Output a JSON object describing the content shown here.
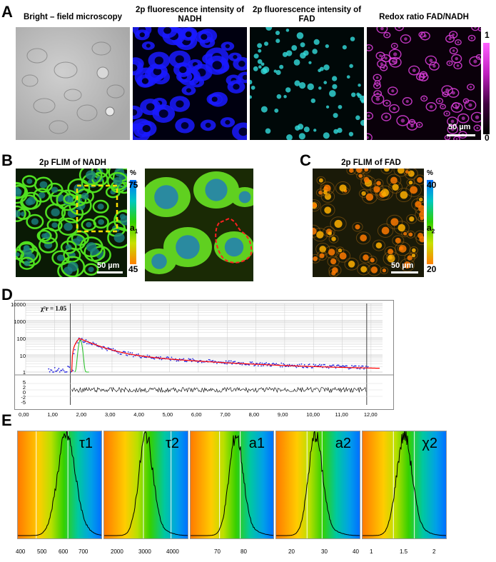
{
  "panels": {
    "A": "A",
    "B": "B",
    "C": "C",
    "D": "D",
    "E": "E"
  },
  "a": {
    "captions": [
      "Bright – field microscopy",
      "2p fluorescence intensity of NADH",
      "2p fluorescence intensity of FAD",
      "Redox ratio FAD/NADH"
    ],
    "cb_max": "1",
    "cb_min": "0",
    "scale": "50 µm"
  },
  "b": {
    "caption": "2p FLIM of NADH",
    "pct": "%",
    "max": "75",
    "min": "45",
    "sym": "a",
    "sub": "1",
    "scale": "50 µm"
  },
  "c": {
    "caption": "2p FLIM of FAD",
    "pct": "%",
    "max": "40",
    "min": "20",
    "sym": "a",
    "sub": "2",
    "scale": "50 µm"
  },
  "d": {
    "chi_label": "χ²r = 1.05",
    "y_ticks": [
      "10000",
      "1000",
      "100",
      "10",
      "1"
    ],
    "res_ticks": [
      "5",
      "2",
      "0",
      "-2",
      "-5"
    ],
    "x_ticks": [
      "0,00",
      "1,00",
      "2,00",
      "3,00",
      "4,00",
      "5,00",
      "6,00",
      "7,00",
      "8,00",
      "9,00",
      "10,00",
      "11,00",
      "12,00"
    ]
  },
  "e": {
    "labels": [
      "τ1",
      "τ2",
      "a1",
      "a2",
      "χ2"
    ],
    "ticks": [
      [
        "400",
        "500",
        "600",
        "700"
      ],
      [
        "2000",
        "3000",
        "4000"
      ],
      [
        "70",
        "80"
      ],
      [
        "20",
        "30",
        "40"
      ],
      [
        "1",
        "1.5",
        "2"
      ]
    ]
  },
  "colors": {
    "nadh": "#1a1aff",
    "fad": "#33dddd",
    "redox": "#e040e0",
    "fit": "#ff0000",
    "data": "#2a2adc"
  }
}
